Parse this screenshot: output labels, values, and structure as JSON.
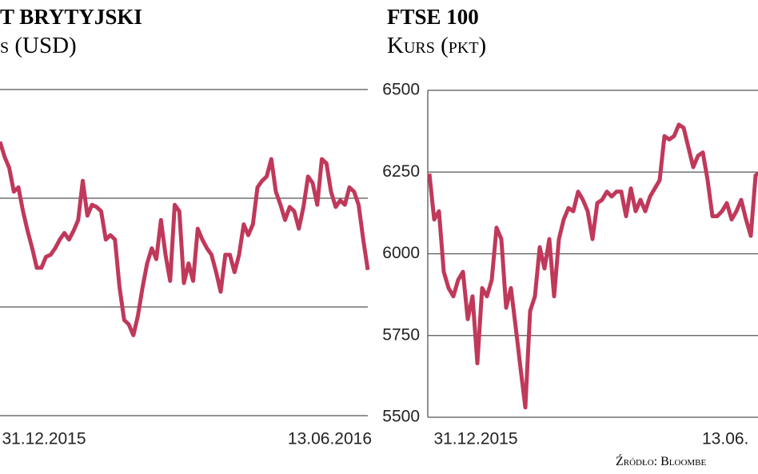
{
  "chart_data": [
    {
      "type": "line",
      "title": "T BRYTYJSKI",
      "subtitle": "s (USD)",
      "x_labels": [
        "31.12.2015",
        "13.06.2016"
      ],
      "color": "#c0395a",
      "ylim": [
        1.35,
        1.5
      ],
      "values": [
        1.476,
        1.469,
        1.464,
        1.453,
        1.455,
        1.444,
        1.435,
        1.427,
        1.418,
        1.418,
        1.423,
        1.424,
        1.427,
        1.431,
        1.434,
        1.431,
        1.435,
        1.44,
        1.458,
        1.442,
        1.447,
        1.446,
        1.444,
        1.431,
        1.433,
        1.431,
        1.409,
        1.394,
        1.392,
        1.387,
        1.396,
        1.409,
        1.42,
        1.427,
        1.422,
        1.44,
        1.424,
        1.412,
        1.447,
        1.444,
        1.411,
        1.42,
        1.412,
        1.436,
        1.431,
        1.427,
        1.424,
        1.416,
        1.407,
        1.424,
        1.424,
        1.416,
        1.424,
        1.438,
        1.433,
        1.438,
        1.455,
        1.458,
        1.46,
        1.468,
        1.453,
        1.447,
        1.44,
        1.446,
        1.444,
        1.436,
        1.446,
        1.46,
        1.457,
        1.447,
        1.468,
        1.466,
        1.453,
        1.446,
        1.449,
        1.447,
        1.455,
        1.453,
        1.447,
        1.431,
        1.417
      ]
    },
    {
      "type": "line",
      "title": "FTSE 100",
      "subtitle": "Kurs (pkt)",
      "x_labels": [
        "31.12.2015",
        "13.06."
      ],
      "color": "#c0395a",
      "ylim": [
        5500,
        6500
      ],
      "yticks": [
        5500,
        5750,
        6000,
        6250,
        6500
      ],
      "grid": true,
      "note": "Źródło: Bloombe",
      "values": [
        6245,
        6105,
        6130,
        5945,
        5895,
        5870,
        5920,
        5945,
        5800,
        5870,
        5665,
        5895,
        5870,
        5920,
        6080,
        6045,
        5835,
        5895,
        5775,
        5650,
        5530,
        5825,
        5870,
        6020,
        5955,
        6045,
        5870,
        6045,
        6105,
        6140,
        6130,
        6190,
        6165,
        6130,
        6045,
        6155,
        6165,
        6190,
        6175,
        6190,
        6190,
        6115,
        6200,
        6130,
        6165,
        6130,
        6175,
        6200,
        6225,
        6360,
        6350,
        6360,
        6395,
        6385,
        6325,
        6265,
        6300,
        6310,
        6225,
        6115,
        6115,
        6130,
        6155,
        6105,
        6130,
        6165,
        6105,
        6055,
        6240,
        6250
      ]
    }
  ]
}
